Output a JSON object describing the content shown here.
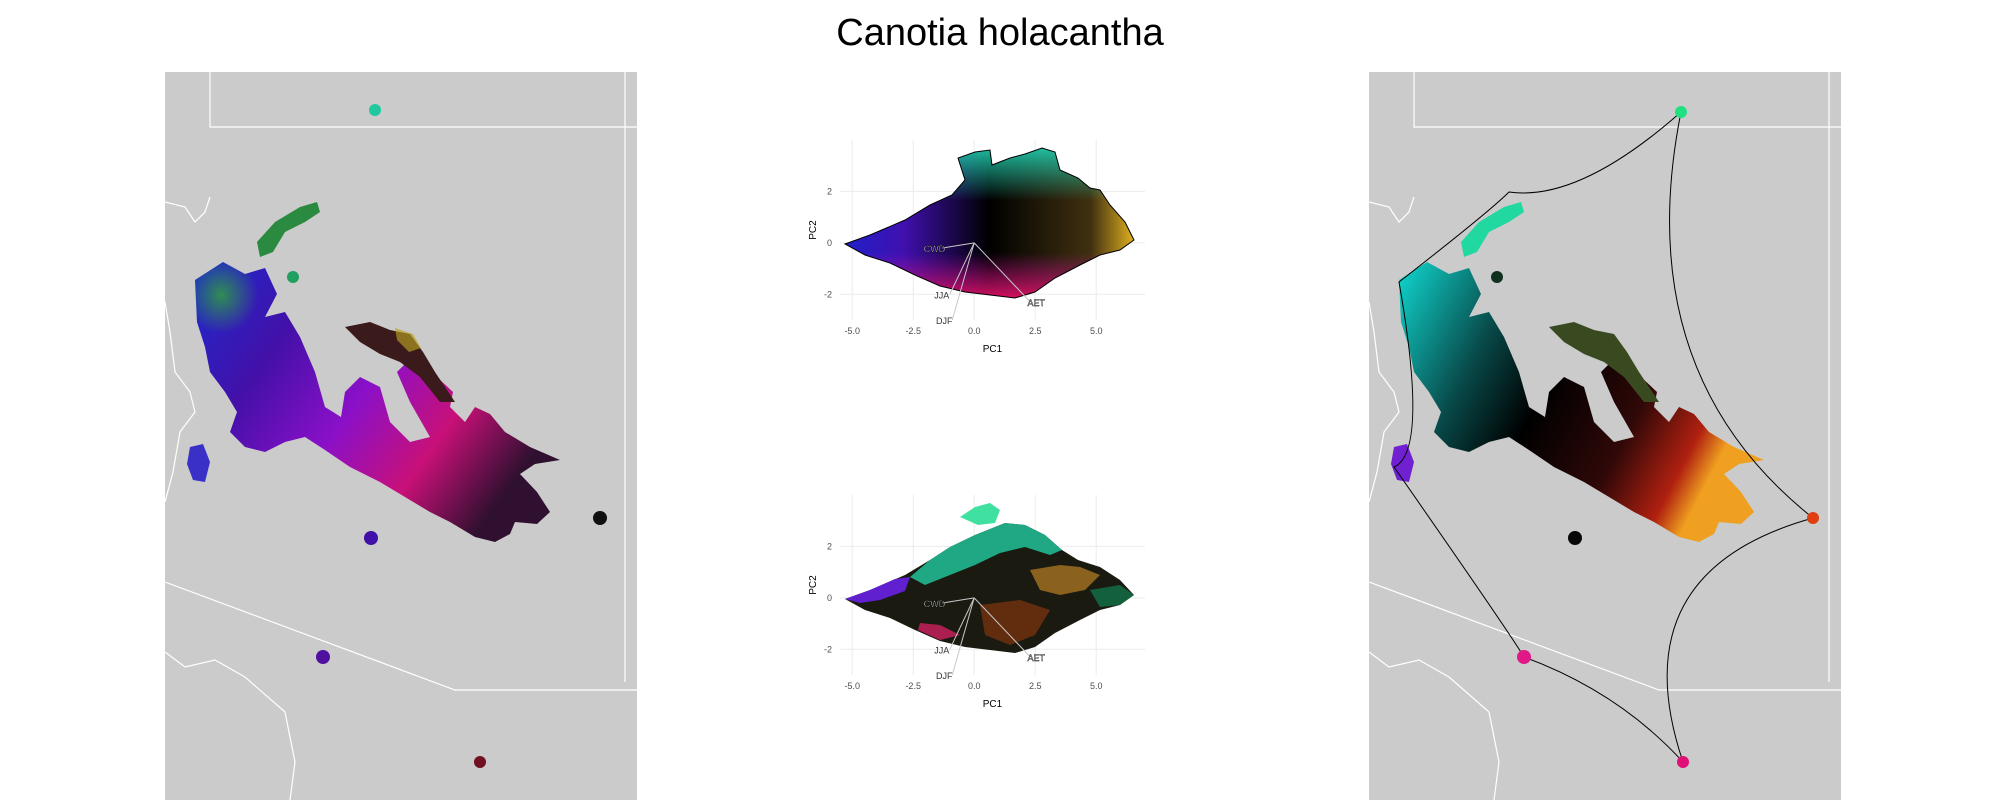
{
  "figure": {
    "title": "Canotia holacantha"
  },
  "colors": {
    "map_background": "#cbcbcb",
    "state_border": "#ffffff",
    "grid": "#ebebeb",
    "axis_text": "#4d4d4d",
    "loading_line": "#666666",
    "hull_line": "#000000"
  },
  "chart_data": [
    {
      "type": "scatter",
      "panel": "pca-climate-colors",
      "xlabel": "PC1",
      "ylabel": "PC2",
      "xlim": [
        -5.5,
        7.0
      ],
      "ylim": [
        -3.0,
        4.0
      ],
      "x_ticks": [
        -5.0,
        -2.5,
        0.0,
        2.5,
        5.0
      ],
      "x_tick_labels": [
        "-5.0",
        "-2.5",
        "0.0",
        "2.5",
        "5.0"
      ],
      "y_ticks": [
        -2,
        0,
        2
      ],
      "y_tick_labels": [
        "-2",
        "0",
        "2"
      ],
      "grid": true,
      "loadings": [
        {
          "label": "CWD",
          "x": -1.3,
          "y": -0.2
        },
        {
          "label": "JJA",
          "x": -1.0,
          "y": -2.0
        },
        {
          "label": "DJF",
          "x": -0.9,
          "y": -3.0
        },
        {
          "label": "AET",
          "x": 2.3,
          "y": -2.3
        }
      ]
    },
    {
      "type": "scatter",
      "panel": "pca-cluster-colors",
      "xlabel": "PC1",
      "ylabel": "PC2",
      "xlim": [
        -5.5,
        7.0
      ],
      "ylim": [
        -3.0,
        4.0
      ],
      "x_ticks": [
        -5.0,
        -2.5,
        0.0,
        2.5,
        5.0
      ],
      "x_tick_labels": [
        "-5.0",
        "-2.5",
        "0.0",
        "2.5",
        "5.0"
      ],
      "y_ticks": [
        -2,
        0,
        2
      ],
      "y_tick_labels": [
        "-2",
        "0",
        "2"
      ],
      "grid": true,
      "loadings": [
        {
          "label": "CWD",
          "x": -1.3,
          "y": -0.2
        },
        {
          "label": "JJA",
          "x": -1.0,
          "y": -2.0
        },
        {
          "label": "DJF",
          "x": -0.9,
          "y": -3.0
        },
        {
          "label": "AET",
          "x": 2.3,
          "y": -2.3
        }
      ]
    }
  ]
}
